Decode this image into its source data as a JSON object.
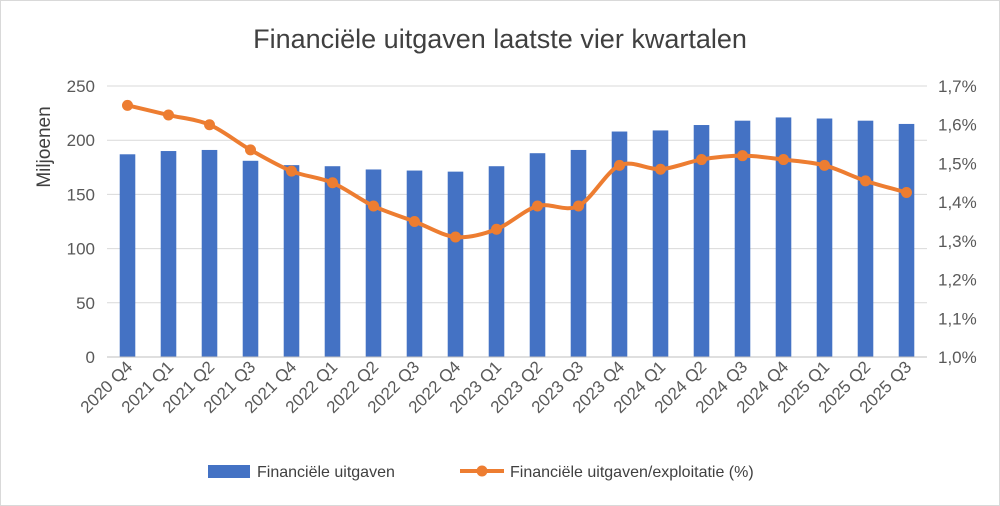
{
  "chart_data": {
    "type": "bar+line",
    "title": "Financiële uitgaven laatste vier kwartalen",
    "ylabel": "Miljoenen",
    "y2label": "",
    "categories": [
      "2020 Q4",
      "2021 Q1",
      "2021 Q2",
      "2021 Q3",
      "2021 Q4",
      "2022 Q1",
      "2022 Q2",
      "2022 Q3",
      "2022 Q4",
      "2023 Q1",
      "2023 Q2",
      "2023 Q3",
      "2023 Q4",
      "2024 Q1",
      "2024 Q2",
      "2024 Q3",
      "2024 Q4",
      "2025 Q1",
      "2025 Q2",
      "2025 Q3"
    ],
    "series": [
      {
        "name": "Financiële uitgaven",
        "type": "bar",
        "axis": "left",
        "color": "#4472c4",
        "values": [
          187,
          190,
          191,
          181,
          177,
          176,
          173,
          172,
          171,
          176,
          188,
          191,
          208,
          209,
          214,
          218,
          221,
          220,
          218,
          215
        ]
      },
      {
        "name": "Financiële uitgaven/exploitatie (%)",
        "type": "line",
        "axis": "right",
        "color": "#ed7d31",
        "values": [
          1.65,
          1.625,
          1.6,
          1.535,
          1.48,
          1.45,
          1.39,
          1.35,
          1.31,
          1.33,
          1.39,
          1.39,
          1.495,
          1.485,
          1.51,
          1.52,
          1.51,
          1.495,
          1.455,
          1.425
        ]
      }
    ],
    "ylim": [
      0,
      250
    ],
    "yticks": [
      "0",
      "50",
      "100",
      "150",
      "200",
      "250"
    ],
    "y2lim": [
      1.0,
      1.7
    ],
    "y2ticks": [
      "1,0%",
      "1,1%",
      "1,2%",
      "1,3%",
      "1,4%",
      "1,5%",
      "1,6%",
      "1,7%"
    ],
    "grid": true,
    "legend_position": "bottom"
  }
}
